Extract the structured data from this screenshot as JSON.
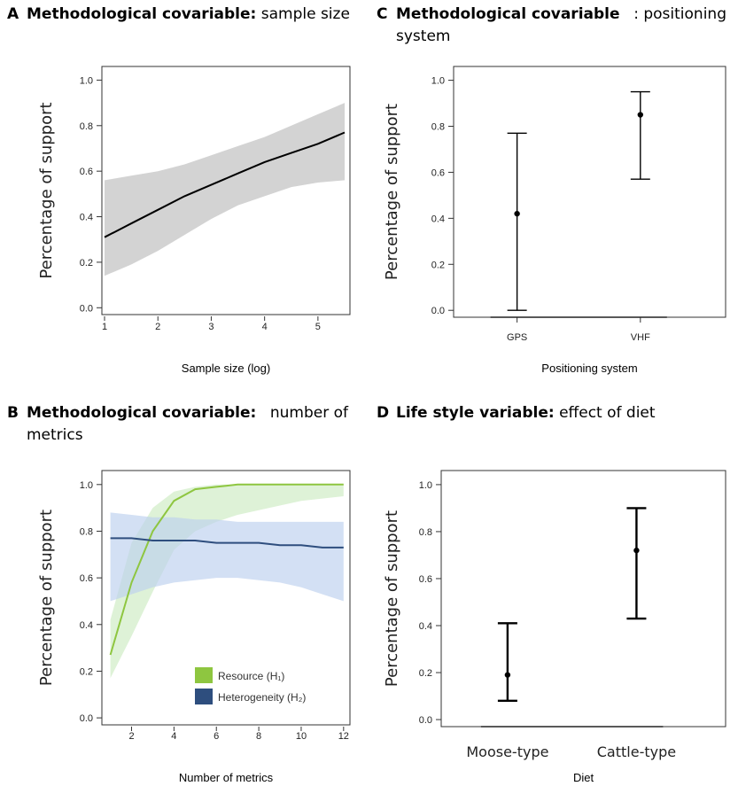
{
  "panels": {
    "A": {
      "letter": "A",
      "bold": "Methodological covariable:",
      "rest": " sample size"
    },
    "B": {
      "letter": "B",
      "bold": "Methodological covariable:",
      "rest": " number of",
      "line2": "metrics"
    },
    "C": {
      "letter": "C",
      "bold": "Methodological covariable",
      "rest": ": positioning",
      "line2": "system"
    },
    "D": {
      "letter": "D",
      "bold": "Life style variable:",
      "rest": " effect of diet"
    }
  },
  "colors": {
    "green_line": "#8ec640",
    "green_fill": "#cdebc2",
    "blue_line": "#2e4e7e",
    "blue_fill": "#bcd0ee",
    "gray_fill": "#d3d3d3"
  },
  "chart_data": [
    {
      "id": "A",
      "type": "line",
      "title": "Methodological covariable: sample size",
      "xlabel": "Sample size (log)",
      "ylabel": "Percentage of support",
      "xlim": [
        0.95,
        5.6
      ],
      "ylim": [
        -0.03,
        1.06
      ],
      "xticks": [
        1,
        2,
        3,
        4,
        5
      ],
      "yticks": [
        "0.0",
        "0.2",
        "0.4",
        "0.6",
        "0.8",
        "1.0"
      ],
      "series": [
        {
          "name": "fit",
          "x": [
            1,
            1.5,
            2,
            2.5,
            3,
            3.5,
            4,
            4.5,
            5,
            5.5
          ],
          "y": [
            0.31,
            0.37,
            0.43,
            0.49,
            0.54,
            0.59,
            0.64,
            0.68,
            0.72,
            0.77
          ],
          "lower": [
            0.14,
            0.19,
            0.25,
            0.32,
            0.39,
            0.45,
            0.49,
            0.53,
            0.55,
            0.56
          ],
          "upper": [
            0.56,
            0.58,
            0.6,
            0.63,
            0.67,
            0.71,
            0.75,
            0.8,
            0.85,
            0.9
          ]
        }
      ]
    },
    {
      "id": "B",
      "type": "line",
      "title": "Methodological covariable: number of metrics",
      "xlabel": "Number of metrics",
      "ylabel": "Percentage of support",
      "xlim": [
        0.6,
        12.3
      ],
      "ylim": [
        -0.03,
        1.06
      ],
      "xticks": [
        2,
        4,
        6,
        8,
        10,
        12
      ],
      "yticks": [
        "0.0",
        "0.2",
        "0.4",
        "0.6",
        "0.8",
        "1.0"
      ],
      "legend": [
        "Resource (H₁)",
        "Heterogeneity (H₂)"
      ],
      "series": [
        {
          "name": "Resource (H₁)",
          "x": [
            1,
            2,
            3,
            4,
            5,
            6,
            7,
            8,
            9,
            10,
            11,
            12
          ],
          "y": [
            0.27,
            0.58,
            0.8,
            0.93,
            0.98,
            0.99,
            1.0,
            1.0,
            1.0,
            1.0,
            1.0,
            1.0
          ],
          "lower": [
            0.17,
            0.35,
            0.54,
            0.72,
            0.8,
            0.84,
            0.87,
            0.89,
            0.91,
            0.93,
            0.94,
            0.95
          ],
          "upper": [
            0.42,
            0.75,
            0.9,
            0.97,
            0.99,
            1.0,
            1.0,
            1.0,
            1.0,
            1.0,
            1.0,
            1.0
          ]
        },
        {
          "name": "Heterogeneity (H₂)",
          "x": [
            1,
            2,
            3,
            4,
            5,
            6,
            7,
            8,
            9,
            10,
            11,
            12
          ],
          "y": [
            0.77,
            0.77,
            0.76,
            0.76,
            0.76,
            0.75,
            0.75,
            0.75,
            0.74,
            0.74,
            0.73,
            0.73
          ],
          "lower": [
            0.5,
            0.53,
            0.56,
            0.58,
            0.59,
            0.6,
            0.6,
            0.59,
            0.58,
            0.56,
            0.53,
            0.5
          ],
          "upper": [
            0.88,
            0.87,
            0.86,
            0.86,
            0.85,
            0.85,
            0.84,
            0.84,
            0.84,
            0.84,
            0.84,
            0.84
          ]
        }
      ]
    },
    {
      "id": "C",
      "type": "scatter",
      "title": "Methodological covariable: positioning system",
      "xlabel": "Positioning system",
      "ylabel": "Percentage of support",
      "ylim": [
        -0.03,
        1.06
      ],
      "categories": [
        "GPS",
        "VHF"
      ],
      "yticks": [
        "0.0",
        "0.2",
        "0.4",
        "0.6",
        "0.8",
        "1.0"
      ],
      "values": [
        0.42,
        0.85
      ],
      "lower": [
        0.0,
        0.57
      ],
      "upper": [
        0.77,
        0.95
      ]
    },
    {
      "id": "D",
      "type": "scatter",
      "title": "Life style variable: effect of diet",
      "xlabel": "Diet",
      "ylabel": "Percentage of support",
      "ylim": [
        -0.03,
        1.06
      ],
      "categories": [
        "Moose-type",
        "Cattle-type"
      ],
      "yticks": [
        "0.0",
        "0.2",
        "0.4",
        "0.6",
        "0.8",
        "1.0"
      ],
      "values": [
        0.19,
        0.72
      ],
      "lower": [
        0.08,
        0.43
      ],
      "upper": [
        0.41,
        0.9
      ]
    }
  ]
}
